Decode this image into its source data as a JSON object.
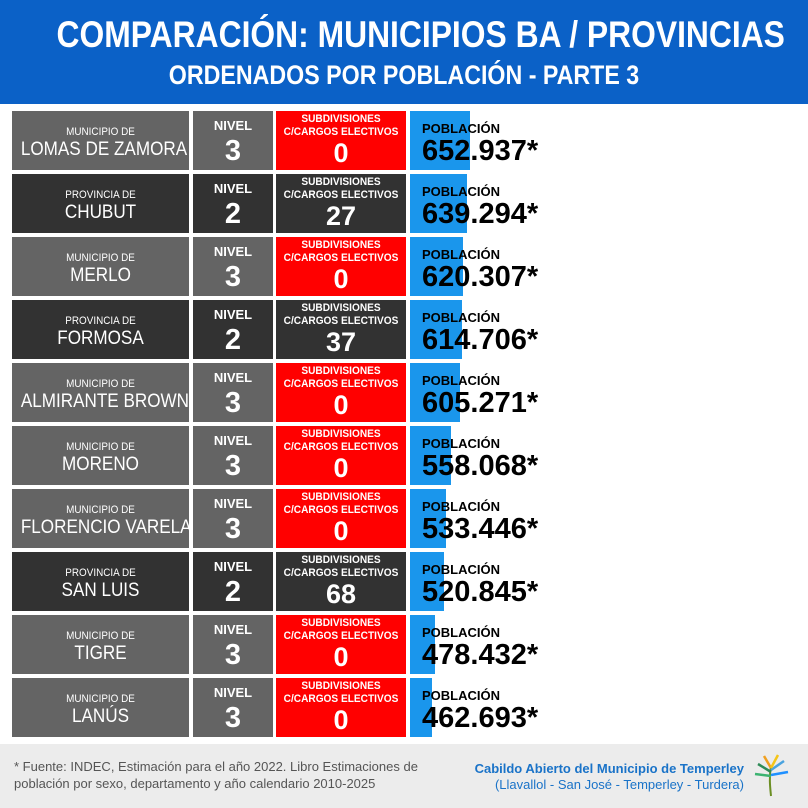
{
  "header": {
    "title": "COMPARACIÓN: MUNICIPIOS BA / PROVINCIAS",
    "subtitle": "ORDENADOS POR POBLACIÓN - PARTE 3"
  },
  "labels": {
    "nivel": "NIVEL",
    "subdivisiones": "SUBDIVISIONES C/CARGOS ELECTIVOS",
    "poblacion": "POBLACIÓN"
  },
  "colors": {
    "header_bg": "#0b61c7",
    "municipio_bg": "#646464",
    "provincia_bg": "#323232",
    "sub_zero_bg": "#ff0000",
    "population_bar": "#1a96ec"
  },
  "chart_data": {
    "type": "bar",
    "title": "COMPARACIÓN: MUNICIPIOS BA / PROVINCIAS",
    "subtitle": "ORDENADOS POR POBLACIÓN - PARTE 3",
    "categories": [
      "LOMAS DE ZAMORA",
      "CHUBUT",
      "MERLO",
      "FORMOSA",
      "ALMIRANTE BROWN",
      "MORENO",
      "FLORENCIO VARELA",
      "SAN LUIS",
      "TIGRE",
      "LANÚS"
    ],
    "kinds": [
      "MUNICIPIO DE",
      "PROVINCIA DE",
      "MUNICIPIO DE",
      "PROVINCIA DE",
      "MUNICIPIO DE",
      "MUNICIPIO DE",
      "MUNICIPIO DE",
      "PROVINCIA DE",
      "MUNICIPIO DE",
      "MUNICIPIO DE"
    ],
    "nivel": [
      3,
      2,
      3,
      2,
      3,
      3,
      3,
      2,
      3,
      3
    ],
    "subdivisiones": [
      0,
      27,
      0,
      37,
      0,
      0,
      0,
      68,
      0,
      0
    ],
    "values": [
      652937,
      639294,
      620307,
      614706,
      605271,
      558068,
      533446,
      520845,
      478432,
      462693
    ],
    "value_labels": [
      "652.937*",
      "639.294*",
      "620.307*",
      "614.706*",
      "605.271*",
      "558.068*",
      "533.446*",
      "520.845*",
      "478.432*",
      "462.693*"
    ]
  },
  "footer": {
    "note": "* Fuente: INDEC, Estimación para el año 2022. Libro Estimaciones de población por sexo, departamento y año calendario 2010-2025",
    "org_name": "Cabildo Abierto del Municipio de Temperley",
    "org_areas": "(Llavallol - San José - Temperley - Turdera)"
  }
}
